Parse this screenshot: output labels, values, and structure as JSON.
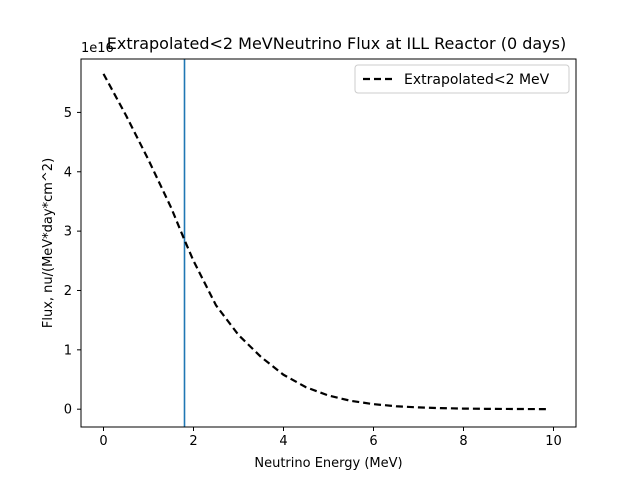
{
  "chart_data": {
    "type": "line",
    "title": "Extrapolated<2 MeVNeutrino Flux at ILL Reactor (0 days)",
    "xlabel": "Neutrino Energy (MeV)",
    "ylabel": "Flux, nu/(MeV*day*cm^2)",
    "y_offset_text": "1e16",
    "xlim": [
      -0.5,
      10.5
    ],
    "ylim": [
      -0.3,
      5.9
    ],
    "x_ticks": [
      0,
      2,
      4,
      6,
      8,
      10
    ],
    "y_ticks": [
      0,
      1,
      2,
      3,
      4,
      5
    ],
    "grid": false,
    "legend_position": "top-right",
    "series": [
      {
        "name": "Extrapolated<2 MeV",
        "color": "#000000",
        "line_style": "dashed",
        "x": [
          0.0,
          0.5,
          1.0,
          1.5,
          1.8,
          2.0,
          2.5,
          3.0,
          3.5,
          4.0,
          4.5,
          5.0,
          5.5,
          6.0,
          6.5,
          7.0,
          7.5,
          8.0,
          8.5,
          9.0,
          9.5,
          9.9
        ],
        "y": [
          5.65,
          4.95,
          4.2,
          3.4,
          2.85,
          2.5,
          1.75,
          1.25,
          0.88,
          0.58,
          0.37,
          0.23,
          0.14,
          0.085,
          0.05,
          0.03,
          0.018,
          0.01,
          0.006,
          0.004,
          0.002,
          0.001
        ]
      }
    ],
    "vertical_line": {
      "x": 1.8,
      "color": "#1f77b4"
    }
  }
}
